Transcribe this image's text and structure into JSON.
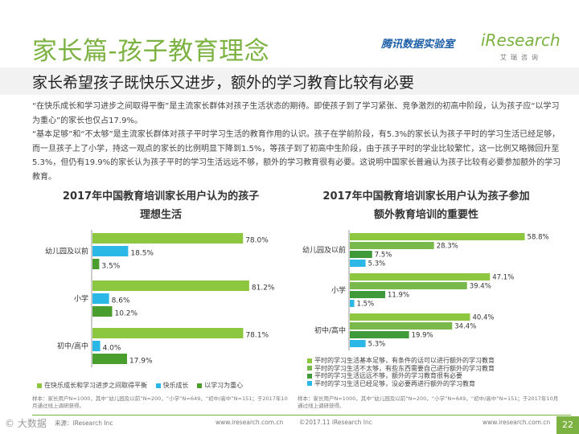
{
  "header": {
    "title": "家长篇-孩子教育理念",
    "brand_tencent": "腾讯数据实验室",
    "brand_iresearch": "iResearch",
    "brand_iresearch_sub": "艾瑞咨询",
    "subtitle": "家长希望孩子既快乐又进步，额外的学习教育比较有必要"
  },
  "body": {
    "paragraph1": "“在快乐成长和学习进步之间取得平衡”是主流家长群体对孩子生活状态的期待。即使孩子到了学习紧张、竞争激烈的初高中阶段，认为孩子应“以学习为重心”的家长也仅占17.9%。",
    "paragraph2": "“基本足够”和“不太够”是主流家长群体对孩子平时学习生活的教育作用的认识。孩子在学前阶段，有5.3%的家长认为孩子平时的学习生活已经足够，而一旦孩子上了小学，持这一观点的家长的比例明显下降到1.5%，等孩子到了初高中生阶段，由于孩子平时的学业比较繁忙，这一比例又略微回升至5.3%，但仍有19.9%的家长认为孩子平时的学习生活远远不够，额外的学习教育很有必要。这说明中国家长普遍认为孩子比较有必要参加额外的学习教育。"
  },
  "chart_data": [
    {
      "type": "bar",
      "orientation": "horizontal",
      "title_line1": "2017年中国教育培训家长用户认为的孩子",
      "title_line2": "理想生活",
      "categories": [
        "幼儿园及以前",
        "小学",
        "初中/高中"
      ],
      "series": [
        {
          "name": "在快乐成长和学习进步之间取得平衡",
          "color": "#8dc63f",
          "values": [
            78.0,
            81.2,
            78.1
          ]
        },
        {
          "name": "快乐成长",
          "color": "#2bb8e6",
          "values": [
            18.5,
            8.6,
            4.0
          ]
        },
        {
          "name": "以学习为重心",
          "color": "#4a9e2e",
          "values": [
            3.5,
            10.2,
            17.9
          ]
        }
      ],
      "value_labels": [
        [
          "78.0%",
          "18.5%",
          "3.5%"
        ],
        [
          "81.2%",
          "8.6%",
          "10.2%"
        ],
        [
          "78.1%",
          "4.0%",
          "17.9%"
        ]
      ],
      "xlim": [
        0,
        100
      ],
      "note": "样本：家长用户N=1000，其中“幼儿园及以前”N=200，“小学”N=649，“初中/高中”N=151；于2017年10月通过线上调研获得。"
    },
    {
      "type": "bar",
      "orientation": "horizontal",
      "title_line1": "2017年中国教育培训家长用户认为孩子参加",
      "title_line2": "额外教育培训的重要性",
      "categories": [
        "幼儿园及以前",
        "小学",
        "初中/高中"
      ],
      "series": [
        {
          "name": "平时的学习生活基本足够，有条件的话可以进行额外的学习教育",
          "color": "#8dc63f",
          "values": [
            58.8,
            47.1,
            40.4
          ]
        },
        {
          "name": "平时的学习生活不太够，有些东西需要自己进行额外的学习教育",
          "color": "#79b94c",
          "values": [
            28.3,
            39.4,
            34.4
          ]
        },
        {
          "name": "平时的学习生活远远不够，额外的学习教育很有必要",
          "color": "#3f9a3a",
          "values": [
            7.5,
            11.9,
            19.9
          ]
        },
        {
          "name": "平时的学习生活已经足够，没必要再进行额外的学习教育",
          "color": "#2bb8e6",
          "values": [
            5.3,
            1.5,
            5.3
          ]
        }
      ],
      "value_labels": [
        [
          "58.8%",
          "28.3%",
          "7.5%",
          "5.3%"
        ],
        [
          "47.1%",
          "39.4%",
          "11.9%",
          "1.5%"
        ],
        [
          "40.4%",
          "34.4%",
          "19.9%",
          "5.3%"
        ]
      ],
      "xlim": [
        0,
        100
      ],
      "note": "样本：家长用户N=1000，其中“幼儿园及以前”N=200，“小学”N=649，“初中/高中”N=151；于2017年10月通过线上调研获得。"
    }
  ],
  "footer": {
    "source_left": "来源：iResearch Inc",
    "url_left": "www.iresearch.com.cn",
    "copyright_right": "©2017.11 iResearch Inc",
    "url_right": "www.iresearch.com.cn",
    "page_number": "22",
    "watermark": "© 大数据"
  }
}
